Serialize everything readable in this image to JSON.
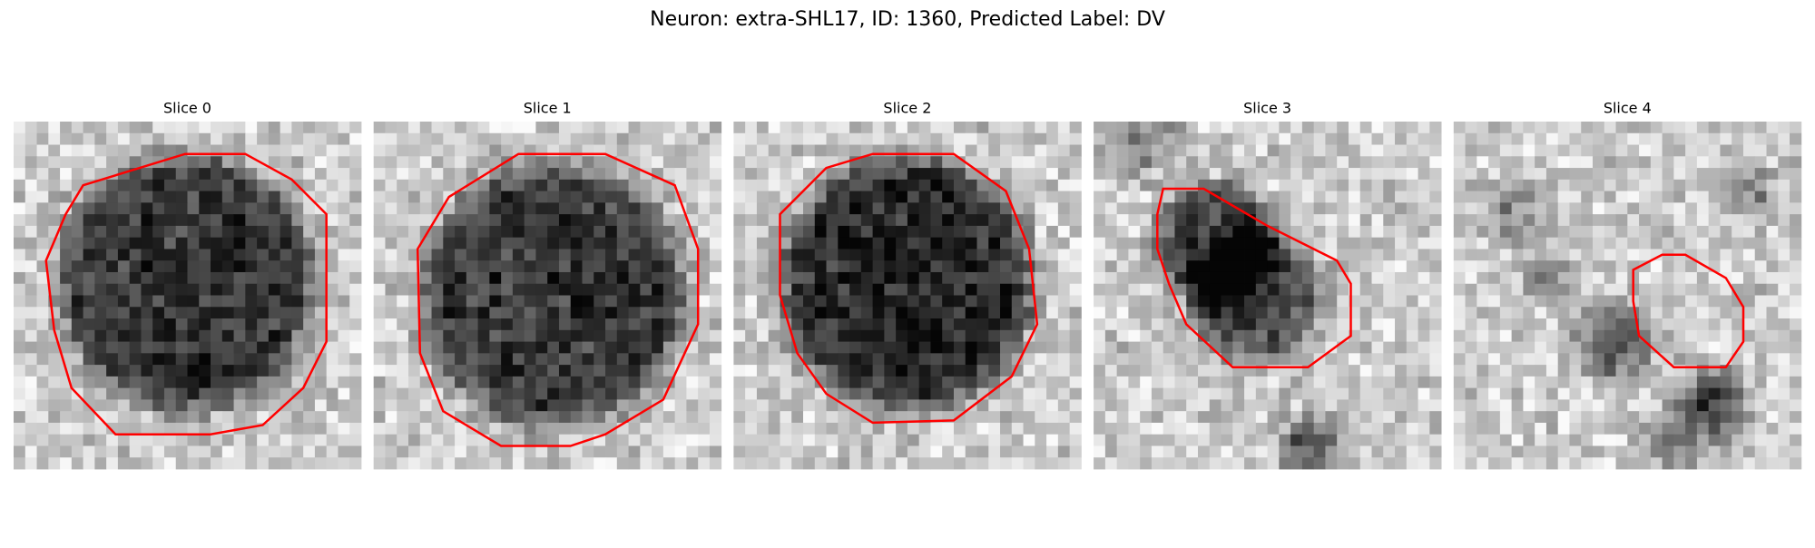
{
  "title": "Neuron: extra-SHL17, ID: 1360, Predicted Label: DV",
  "panels": [
    {
      "title": "Slice 0"
    },
    {
      "title": "Slice 1"
    },
    {
      "title": "Slice 2"
    },
    {
      "title": "Slice 3"
    },
    {
      "title": "Slice 4"
    }
  ]
}
